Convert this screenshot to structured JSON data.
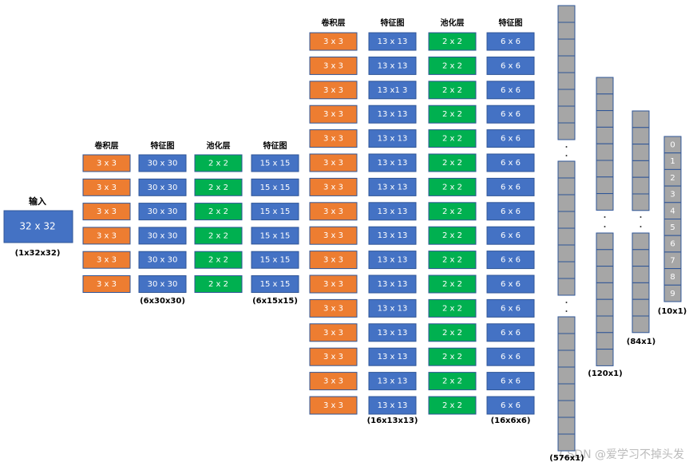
{
  "input": {
    "title": "输入",
    "size": "32 x 32",
    "shape": "(1x32x32)"
  },
  "stage1": {
    "headers": [
      "卷积层",
      "特征图",
      "池化层",
      "特征图"
    ],
    "rows": [
      [
        "3 x 3",
        "30 x 30",
        "2 x 2",
        "15 x 15"
      ],
      [
        "3 x 3",
        "30 x 30",
        "2 x 2",
        "15 x 15"
      ],
      [
        "3 x 3",
        "30 x 30",
        "2 x 2",
        "15 x 15"
      ],
      [
        "3 x 3",
        "30 x 30",
        "2 x 2",
        "15 x 15"
      ],
      [
        "3 x 3",
        "30 x 30",
        "2 x 2",
        "15 x 15"
      ],
      [
        "3 x 3",
        "30 x 30",
        "2 x 2",
        "15 x 15"
      ]
    ],
    "footers": [
      "(6x30x30)",
      "(6x15x15)"
    ]
  },
  "stage2": {
    "headers": [
      "卷积层",
      "特征图",
      "池化层",
      "特征图"
    ],
    "rows": [
      [
        "3 x 3",
        "13 x 13",
        "2 x 2",
        "6 x 6"
      ],
      [
        "3 x 3",
        "13 x 13",
        "2 x 2",
        "6 x 6"
      ],
      [
        "3 x 3",
        "13 x1 3",
        "2 x 2",
        "6 x 6"
      ],
      [
        "3 x 3",
        "13 x 13",
        "2 x 2",
        "6 x 6"
      ],
      [
        "3 x 3",
        "13 x 13",
        "2 x 2",
        "6 x 6"
      ],
      [
        "3 x 3",
        "13 x 13",
        "2 x 2",
        "6 x 6"
      ],
      [
        "3 x 3",
        "13 x 13",
        "2 x 2",
        "6 x 6"
      ],
      [
        "3 x 3",
        "13 x 13",
        "2 x 2",
        "6 x 6"
      ],
      [
        "3 x 3",
        "13 x 13",
        "2 x 2",
        "6 x 6"
      ],
      [
        "3 x 3",
        "13 x 13",
        "2 x 2",
        "6 x 6"
      ],
      [
        "3 x 3",
        "13 x 13",
        "2 x 2",
        "6 x 6"
      ],
      [
        "3 x 3",
        "13 x 13",
        "2 x 2",
        "6 x 6"
      ],
      [
        "3 x 3",
        "13 x 13",
        "2 x 2",
        "6 x 6"
      ],
      [
        "3 x 3",
        "13 x 13",
        "2 x 2",
        "6 x 6"
      ],
      [
        "3 x 3",
        "13 x 13",
        "2 x 2",
        "6 x 6"
      ],
      [
        "3 x 3",
        "13 x 13",
        "2 x 2",
        "6 x 6"
      ]
    ],
    "footers": [
      "(16x13x13)",
      "(16x6x6)"
    ]
  },
  "vectors": [
    {
      "label": "(576x1)"
    },
    {
      "label": "(120x1)"
    },
    {
      "label": "(84x1)"
    }
  ],
  "output": {
    "label": "(10x1)",
    "cells": [
      "0",
      "1",
      "2",
      "3",
      "4",
      "5",
      "6",
      "7",
      "8",
      "9"
    ]
  },
  "watermark": "CSDN @爱学习不掉头发"
}
